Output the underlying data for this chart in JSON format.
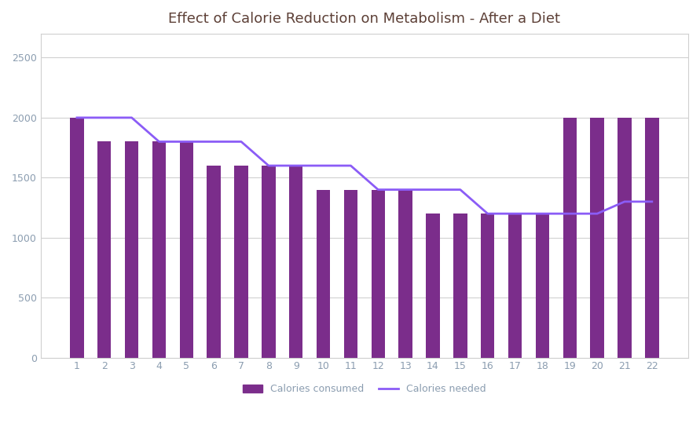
{
  "title": "Effect of Calorie Reduction on Metabolism - After a Diet",
  "categories": [
    1,
    2,
    3,
    4,
    5,
    6,
    7,
    8,
    9,
    10,
    11,
    12,
    13,
    14,
    15,
    16,
    17,
    18,
    19,
    20,
    21,
    22
  ],
  "bar_values": [
    2000,
    1800,
    1800,
    1800,
    1800,
    1600,
    1600,
    1600,
    1600,
    1400,
    1400,
    1400,
    1400,
    1200,
    1200,
    1200,
    1200,
    1200,
    2000,
    2000,
    2000,
    2000
  ],
  "line_values": [
    2000,
    2000,
    2000,
    1800,
    1800,
    1800,
    1800,
    1600,
    1600,
    1600,
    1600,
    1400,
    1400,
    1400,
    1400,
    1200,
    1200,
    1200,
    1200,
    1200,
    1300,
    1300
  ],
  "bar_color": "#7B2D8B",
  "line_color": "#8B5CF6",
  "ylim": [
    0,
    2700
  ],
  "yticks": [
    0,
    500,
    1000,
    1500,
    2000,
    2500
  ],
  "legend_labels": [
    "Calories consumed",
    "Calories needed"
  ],
  "background_color": "#FFFFFF",
  "outer_bg": "#F5F5F5",
  "grid_color": "#D0D0D0",
  "frame_color": "#D0D0D0",
  "title_color": "#5D4037",
  "tick_color": "#8B9DB0",
  "title_fontsize": 13,
  "tick_fontsize": 9
}
